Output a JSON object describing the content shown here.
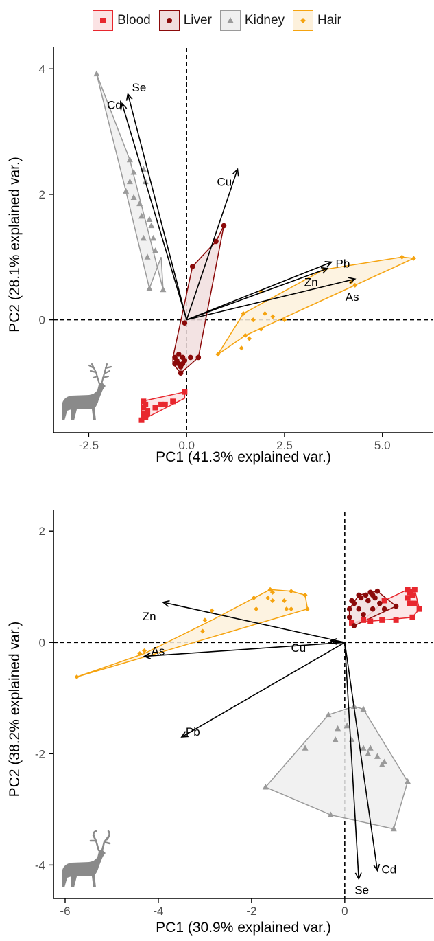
{
  "legend": {
    "items": [
      {
        "label": "Blood",
        "color": "#e8272e",
        "fill": "#fbe3e4",
        "shape": "square"
      },
      {
        "label": "Liver",
        "color": "#8b0a0a",
        "fill": "#f1dede",
        "shape": "circle"
      },
      {
        "label": "Kidney",
        "color": "#9a9a9a",
        "fill": "#efefef",
        "shape": "triangle"
      },
      {
        "label": "Hair",
        "color": "#f5a30f",
        "fill": "#fdf1dc",
        "shape": "diamond"
      }
    ]
  },
  "chart_data": [
    {
      "type": "scatter",
      "subtype": "pca-biplot",
      "title": "",
      "xlabel": "PC1 (41.3% explained var.)",
      "ylabel": "PC2 (28.1% explained var.)",
      "xlim": [
        -3.4,
        6.3
      ],
      "ylim": [
        -1.8,
        4.2
      ],
      "xticks": [
        -2.5,
        0.0,
        2.5,
        5.0
      ],
      "xtick_labels": [
        "-2.5",
        "0.0",
        "2.5",
        "5.0"
      ],
      "yticks": [
        0,
        2,
        4
      ],
      "ytick_labels": [
        "0",
        "2",
        "4"
      ],
      "grid": false,
      "legend": "top",
      "icon": "red-deer-stag-silhouette",
      "groups": [
        {
          "name": "Blood",
          "hull": [
            [
              -1.15,
              -1.3
            ],
            [
              -0.05,
              -1.15
            ],
            [
              -0.05,
              -1.25
            ],
            [
              -1.15,
              -1.6
            ]
          ],
          "points": [
            [
              -1.1,
              -1.3
            ],
            [
              -1.05,
              -1.35
            ],
            [
              -1.1,
              -1.4
            ],
            [
              -1.0,
              -1.45
            ],
            [
              -1.1,
              -1.5
            ],
            [
              -1.05,
              -1.55
            ],
            [
              -1.0,
              -1.5
            ],
            [
              -0.8,
              -1.4
            ],
            [
              -0.65,
              -1.35
            ],
            [
              -0.55,
              -1.35
            ],
            [
              -0.35,
              -1.3
            ],
            [
              -0.05,
              -1.15
            ],
            [
              -1.15,
              -1.6
            ],
            [
              -1.1,
              -1.55
            ]
          ]
        },
        {
          "name": "Liver",
          "hull": [
            [
              -0.35,
              -0.6
            ],
            [
              0.15,
              0.85
            ],
            [
              0.75,
              1.25
            ],
            [
              0.95,
              1.5
            ],
            [
              0.3,
              -0.6
            ],
            [
              -0.15,
              -0.85
            ],
            [
              -0.35,
              -0.7
            ]
          ],
          "points": [
            [
              0.95,
              1.5
            ],
            [
              0.75,
              1.25
            ],
            [
              0.15,
              0.85
            ],
            [
              -0.05,
              -0.05
            ],
            [
              -0.3,
              -0.6
            ],
            [
              -0.25,
              -0.65
            ],
            [
              -0.2,
              -0.7
            ],
            [
              -0.15,
              -0.75
            ],
            [
              -0.1,
              -0.6
            ],
            [
              -0.15,
              -0.85
            ],
            [
              -0.05,
              -0.65
            ],
            [
              0.1,
              -0.6
            ],
            [
              -0.3,
              -0.7
            ],
            [
              -0.2,
              -0.55
            ],
            [
              0.3,
              -0.6
            ],
            [
              -0.1,
              -0.7
            ]
          ]
        },
        {
          "name": "Kidney",
          "hull": [
            [
              -2.3,
              3.92
            ],
            [
              -1.45,
              2.55
            ],
            [
              -0.6,
              0.48
            ],
            [
              -0.65,
              1.0
            ],
            [
              -0.95,
              0.5
            ],
            [
              -1.55,
              2.05
            ]
          ],
          "points": [
            [
              -2.3,
              3.92
            ],
            [
              -1.45,
              2.55
            ],
            [
              -1.35,
              2.35
            ],
            [
              -1.45,
              2.2
            ],
            [
              -1.1,
              2.4
            ],
            [
              -1.05,
              2.2
            ],
            [
              -1.55,
              2.05
            ],
            [
              -1.35,
              1.95
            ],
            [
              -1.2,
              1.85
            ],
            [
              -1.15,
              1.65
            ],
            [
              -0.95,
              1.6
            ],
            [
              -0.9,
              1.5
            ],
            [
              -1.1,
              1.3
            ],
            [
              -0.85,
              1.3
            ],
            [
              -0.8,
              1.1
            ],
            [
              -1.0,
              1.0
            ],
            [
              -0.95,
              0.5
            ],
            [
              -0.6,
              0.48
            ]
          ]
        },
        {
          "name": "Hair",
          "hull": [
            [
              0.8,
              -0.55
            ],
            [
              1.45,
              0.1
            ],
            [
              3.5,
              0.8
            ],
            [
              5.5,
              1.0
            ],
            [
              5.8,
              0.98
            ],
            [
              4.3,
              0.55
            ],
            [
              1.5,
              -0.25
            ]
          ],
          "points": [
            [
              0.8,
              -0.55
            ],
            [
              1.4,
              -0.45
            ],
            [
              1.5,
              -0.25
            ],
            [
              1.6,
              -0.3
            ],
            [
              1.45,
              0.1
            ],
            [
              1.7,
              0.0
            ],
            [
              1.9,
              -0.15
            ],
            [
              2.0,
              0.1
            ],
            [
              2.2,
              0.05
            ],
            [
              2.5,
              0.0
            ],
            [
              1.9,
              0.45
            ],
            [
              3.5,
              0.8
            ],
            [
              4.2,
              0.6
            ],
            [
              4.3,
              0.55
            ],
            [
              5.5,
              1.0
            ],
            [
              5.8,
              0.98
            ]
          ]
        }
      ],
      "loadings": [
        {
          "label": "Cd",
          "x": -1.65,
          "y": 3.45
        },
        {
          "label": "Se",
          "x": -1.5,
          "y": 3.6
        },
        {
          "label": "Cu",
          "x": 1.3,
          "y": 2.4
        },
        {
          "label": "Pb",
          "x": 3.7,
          "y": 0.92
        },
        {
          "label": "Zn",
          "x": 3.6,
          "y": 0.82
        },
        {
          "label": "As",
          "x": 4.3,
          "y": 0.65
        }
      ]
    },
    {
      "type": "scatter",
      "subtype": "pca-biplot",
      "title": "",
      "xlabel": "PC1 (30.9% explained var.)",
      "ylabel": "PC2 (38.2% explained var.)",
      "xlim": [
        -6.25,
        1.9
      ],
      "ylim": [
        -4.6,
        2.2
      ],
      "xticks": [
        -6,
        -4,
        -2,
        0
      ],
      "xtick_labels": [
        "-6",
        "-4",
        "-2",
        "0"
      ],
      "yticks": [
        -4,
        -2,
        0,
        2
      ],
      "ytick_labels": [
        "-4",
        "-2",
        "0",
        "2"
      ],
      "grid": false,
      "legend": "top",
      "icon": "fallow-deer-buck-silhouette",
      "groups": [
        {
          "name": "Blood",
          "hull": [
            [
              0.4,
              0.4
            ],
            [
              0.85,
              0.75
            ],
            [
              1.35,
              0.95
            ],
            [
              1.5,
              0.95
            ],
            [
              1.6,
              0.6
            ],
            [
              1.45,
              0.45
            ],
            [
              0.15,
              0.35
            ]
          ],
          "points": [
            [
              0.4,
              0.4
            ],
            [
              0.85,
              0.75
            ],
            [
              1.35,
              0.95
            ],
            [
              1.4,
              0.9
            ],
            [
              1.45,
              0.85
            ],
            [
              1.5,
              0.95
            ],
            [
              1.35,
              0.8
            ],
            [
              1.4,
              0.7
            ],
            [
              1.5,
              0.7
            ],
            [
              1.6,
              0.6
            ],
            [
              1.45,
              0.45
            ],
            [
              1.1,
              0.4
            ],
            [
              0.8,
              0.4
            ],
            [
              0.55,
              0.38
            ],
            [
              0.15,
              0.35
            ]
          ]
        },
        {
          "name": "Liver",
          "hull": [
            [
              0.1,
              0.6
            ],
            [
              0.3,
              0.85
            ],
            [
              0.7,
              0.92
            ],
            [
              1.1,
              0.65
            ],
            [
              0.2,
              0.3
            ],
            [
              0.1,
              0.45
            ]
          ],
          "points": [
            [
              0.1,
              0.6
            ],
            [
              0.15,
              0.75
            ],
            [
              0.2,
              0.7
            ],
            [
              0.3,
              0.85
            ],
            [
              0.35,
              0.8
            ],
            [
              0.45,
              0.85
            ],
            [
              0.5,
              0.75
            ],
            [
              0.55,
              0.9
            ],
            [
              0.6,
              0.85
            ],
            [
              0.65,
              0.8
            ],
            [
              0.7,
              0.92
            ],
            [
              0.75,
              0.7
            ],
            [
              0.85,
              0.6
            ],
            [
              1.1,
              0.65
            ],
            [
              0.3,
              0.6
            ],
            [
              0.4,
              0.5
            ],
            [
              0.2,
              0.3
            ],
            [
              0.1,
              0.45
            ],
            [
              0.6,
              0.6
            ]
          ]
        },
        {
          "name": "Kidney",
          "hull": [
            [
              -1.7,
              -2.6
            ],
            [
              -0.35,
              -1.3
            ],
            [
              0.2,
              -1.15
            ],
            [
              0.4,
              -1.2
            ],
            [
              1.35,
              -2.5
            ],
            [
              1.05,
              -3.35
            ],
            [
              -0.3,
              -3.1
            ]
          ],
          "points": [
            [
              -1.7,
              -2.6
            ],
            [
              -0.35,
              -1.3
            ],
            [
              -0.15,
              -1.55
            ],
            [
              0.05,
              -1.5
            ],
            [
              -0.2,
              -1.75
            ],
            [
              0.15,
              -1.75
            ],
            [
              0.2,
              -1.15
            ],
            [
              0.4,
              -1.2
            ],
            [
              0.4,
              -1.9
            ],
            [
              0.5,
              -2.0
            ],
            [
              0.55,
              -1.9
            ],
            [
              0.7,
              -2.05
            ],
            [
              0.8,
              -2.2
            ],
            [
              0.85,
              -2.15
            ],
            [
              1.35,
              -2.5
            ],
            [
              1.05,
              -3.35
            ],
            [
              -0.3,
              -3.1
            ],
            [
              -0.85,
              -1.9
            ]
          ]
        },
        {
          "name": "Hair",
          "hull": [
            [
              -5.75,
              -0.62
            ],
            [
              -4.3,
              -0.2
            ],
            [
              -2.85,
              0.4
            ],
            [
              -1.6,
              0.95
            ],
            [
              -1.15,
              0.92
            ],
            [
              -0.85,
              0.85
            ],
            [
              -0.8,
              0.6
            ]
          ],
          "points": [
            [
              -5.75,
              -0.62
            ],
            [
              -4.4,
              -0.2
            ],
            [
              -4.3,
              -0.15
            ],
            [
              -3.0,
              0.4
            ],
            [
              -2.85,
              0.57
            ],
            [
              -3.05,
              0.2
            ],
            [
              -1.95,
              0.8
            ],
            [
              -1.9,
              0.6
            ],
            [
              -1.65,
              0.8
            ],
            [
              -1.6,
              0.95
            ],
            [
              -1.55,
              0.9
            ],
            [
              -1.55,
              0.75
            ],
            [
              -1.15,
              0.92
            ],
            [
              -1.3,
              0.75
            ],
            [
              -1.25,
              0.6
            ],
            [
              -1.15,
              0.6
            ],
            [
              -0.85,
              0.85
            ],
            [
              -0.8,
              0.6
            ]
          ]
        }
      ],
      "loadings": [
        {
          "label": "Zn",
          "x": -3.9,
          "y": 0.72
        },
        {
          "label": "As",
          "x": -4.3,
          "y": -0.25
        },
        {
          "label": "Cu",
          "x": -0.3,
          "y": 0.03
        },
        {
          "label": "Pb",
          "x": -3.5,
          "y": -1.7
        },
        {
          "label": "Se",
          "x": 0.3,
          "y": -4.25
        },
        {
          "label": "Cd",
          "x": 0.7,
          "y": -4.1
        }
      ]
    }
  ]
}
